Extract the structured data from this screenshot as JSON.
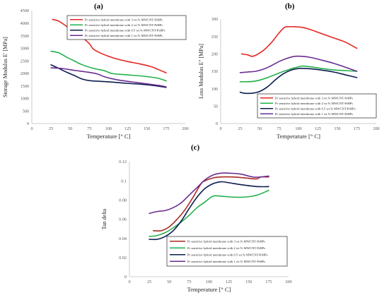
{
  "figure": {
    "panel_labels": [
      "(a)",
      "(b)",
      "(c)"
    ]
  },
  "colors": {
    "series_3wt": "#e52521",
    "series_2wt": "#22b14c",
    "series_05wt": "#0d1b4f",
    "series_1wt": "#6a2c91",
    "series_3wt_tan_delta": "#a82a22"
  },
  "chart_data": [
    {
      "id": "a",
      "type": "line",
      "title": "",
      "xlabel": "Temperature [° C]",
      "ylabel": "Storage Modulus E' [MPa]",
      "xlim": [
        0,
        200
      ],
      "ylim": [
        0,
        4500
      ],
      "xticks": [
        0,
        25,
        50,
        75,
        100,
        125,
        150,
        175,
        200
      ],
      "yticks": [
        0,
        500,
        1000,
        1500,
        2000,
        2500,
        3000,
        3500,
        4000,
        4500
      ],
      "ytick_labels": [
        "0",
        "500",
        "1000",
        "1500",
        "2000",
        "2500",
        "3000",
        "3500",
        "4000",
        "4500"
      ],
      "grid": false,
      "legend_position": "top-right",
      "series": [
        {
          "name": "Pr sensitive hybrid membrane with 3 wt.% MWCNT-PrHPs",
          "color_key": "series_3wt",
          "x": [
            27,
            35,
            45,
            55,
            65,
            75,
            80,
            90,
            100,
            110,
            125,
            140,
            155,
            165,
            175
          ],
          "y": [
            4150,
            4080,
            3880,
            3650,
            3450,
            3180,
            2970,
            2800,
            2680,
            2580,
            2470,
            2380,
            2270,
            2150,
            2020
          ]
        },
        {
          "name": "Pr sensitive hybrid membrane with 2 wt.% MWCNT-PrHPs",
          "color_key": "series_2wt",
          "x": [
            25,
            35,
            45,
            55,
            65,
            80,
            95,
            105,
            125,
            150,
            165,
            175
          ],
          "y": [
            2880,
            2820,
            2650,
            2500,
            2350,
            2200,
            2100,
            1990,
            1940,
            1870,
            1800,
            1700
          ]
        },
        {
          "name": "Pr sensitive hybrid membrane with 0.5 wt.% MWCNT-PrHPs",
          "color_key": "series_05wt",
          "x": [
            25,
            35,
            45,
            55,
            65,
            75,
            90,
            105,
            125,
            145,
            160,
            175
          ],
          "y": [
            2340,
            2200,
            2050,
            1920,
            1780,
            1710,
            1680,
            1650,
            1600,
            1560,
            1510,
            1440
          ]
        },
        {
          "name": "Pr sensitive hybrid membrane with 1 wt.% MWCNT-PrHPs",
          "color_key": "series_1wt",
          "x": [
            25,
            40,
            55,
            70,
            85,
            95,
            110,
            130,
            150,
            165,
            175
          ],
          "y": [
            2220,
            2190,
            2120,
            2060,
            1980,
            1860,
            1750,
            1660,
            1580,
            1520,
            1460
          ]
        }
      ]
    },
    {
      "id": "b",
      "type": "line",
      "title": "",
      "xlabel": "Temperature [° C]",
      "ylabel": "Loss Modulus E'' [MPa]",
      "xlim": [
        0,
        200
      ],
      "ylim": [
        0,
        300
      ],
      "xticks": [
        0,
        25,
        50,
        75,
        100,
        125,
        150,
        175,
        200
      ],
      "yticks": [
        0,
        50,
        100,
        150,
        200,
        250,
        300
      ],
      "ytick_labels": [
        "0",
        "50",
        "100",
        "150",
        "200",
        "250",
        "300"
      ],
      "grid": false,
      "legend_position": "bottom-right",
      "series": [
        {
          "name": "Pr sensitive hybrid membrane with 3 wt.% MWCNT-PrHPs",
          "color_key": "series_3wt",
          "x": [
            27,
            35,
            40,
            45,
            55,
            65,
            75,
            82,
            88,
            95,
            105,
            115,
            130,
            145,
            160,
            175
          ],
          "y": [
            200,
            197,
            193,
            196,
            210,
            232,
            260,
            276,
            278,
            278,
            276,
            270,
            258,
            246,
            234,
            216
          ]
        },
        {
          "name": "Pr sensitive hybrid membrane with 2 wt.% MWCNT-PrHPs",
          "color_key": "series_2wt",
          "x": [
            25,
            35,
            45,
            55,
            65,
            75,
            85,
            95,
            105,
            115,
            130,
            145,
            160,
            175
          ],
          "y": [
            120,
            120,
            122,
            128,
            136,
            145,
            153,
            160,
            165,
            163,
            158,
            154,
            152,
            150
          ]
        },
        {
          "name": "Pr sensitive hybrid membrane with 0.5 wt.% MWCNT-PrHPs",
          "color_key": "series_05wt",
          "x": [
            25,
            30,
            40,
            50,
            60,
            70,
            80,
            90,
            100,
            110,
            125,
            145,
            160,
            175
          ],
          "y": [
            90,
            87,
            87,
            92,
            105,
            125,
            142,
            153,
            158,
            158,
            155,
            148,
            140,
            132
          ]
        },
        {
          "name": "Pr sensitive hybrid membrane with 1 wt.% MWCNT-PrHPs",
          "color_key": "series_1wt",
          "x": [
            25,
            35,
            45,
            55,
            65,
            75,
            85,
            95,
            105,
            115,
            130,
            145,
            160,
            175
          ],
          "y": [
            146,
            148,
            150,
            156,
            166,
            178,
            187,
            193,
            193,
            190,
            182,
            173,
            162,
            150
          ]
        }
      ]
    },
    {
      "id": "c",
      "type": "line",
      "title": "",
      "xlabel": "Temperature [° C]",
      "ylabel": "Tan delta",
      "xlim": [
        0,
        200
      ],
      "ylim": [
        0,
        0.12
      ],
      "xticks": [
        0,
        25,
        50,
        75,
        100,
        125,
        150,
        175,
        200
      ],
      "yticks": [
        0,
        0.02,
        0.04,
        0.06,
        0.08,
        0.1,
        0.12
      ],
      "ytick_labels": [
        "0",
        "0.02",
        "0.04",
        "0.06",
        "0.08",
        "0.1",
        "0.12"
      ],
      "grid": false,
      "legend_position": "bottom-center",
      "series": [
        {
          "name": "Pr sensitive hybrid membrane with 3 wt.% MWCNT-PrHPs",
          "color_key": "series_3wt_tan_delta",
          "x": [
            30,
            40,
            50,
            60,
            70,
            80,
            90,
            95,
            105,
            115,
            130,
            145,
            160,
            165,
            175
          ],
          "y": [
            0.048,
            0.048,
            0.052,
            0.06,
            0.07,
            0.083,
            0.097,
            0.1,
            0.103,
            0.104,
            0.104,
            0.103,
            0.102,
            0.104,
            0.104
          ]
        },
        {
          "name": "Pr sensitive hybrid membrane with 2 wt.% MWCNT-PrHPs",
          "color_key": "series_2wt",
          "x": [
            25,
            35,
            45,
            55,
            65,
            75,
            85,
            95,
            105,
            115,
            130,
            145,
            160,
            175
          ],
          "y": [
            0.042,
            0.043,
            0.046,
            0.051,
            0.057,
            0.064,
            0.072,
            0.078,
            0.084,
            0.084,
            0.083,
            0.083,
            0.085,
            0.09
          ]
        },
        {
          "name": "Pr sensitive hybrid membrane with 0.5 wt.% MWCNT-PrHPs",
          "color_key": "series_05wt",
          "x": [
            25,
            35,
            45,
            55,
            65,
            75,
            85,
            95,
            105,
            115,
            125,
            140,
            160,
            175
          ],
          "y": [
            0.039,
            0.039,
            0.042,
            0.048,
            0.058,
            0.071,
            0.083,
            0.092,
            0.097,
            0.099,
            0.098,
            0.096,
            0.094,
            0.094
          ]
        },
        {
          "name": "Pr sensitive hybrid membrane with 1 wt.% MWCNT-PrHPs",
          "color_key": "series_1wt",
          "x": [
            25,
            35,
            45,
            55,
            65,
            75,
            85,
            95,
            105,
            115,
            125,
            140,
            155,
            165,
            175
          ],
          "y": [
            0.066,
            0.068,
            0.069,
            0.072,
            0.077,
            0.085,
            0.093,
            0.101,
            0.106,
            0.108,
            0.108,
            0.107,
            0.104,
            0.104,
            0.105
          ]
        }
      ]
    }
  ]
}
